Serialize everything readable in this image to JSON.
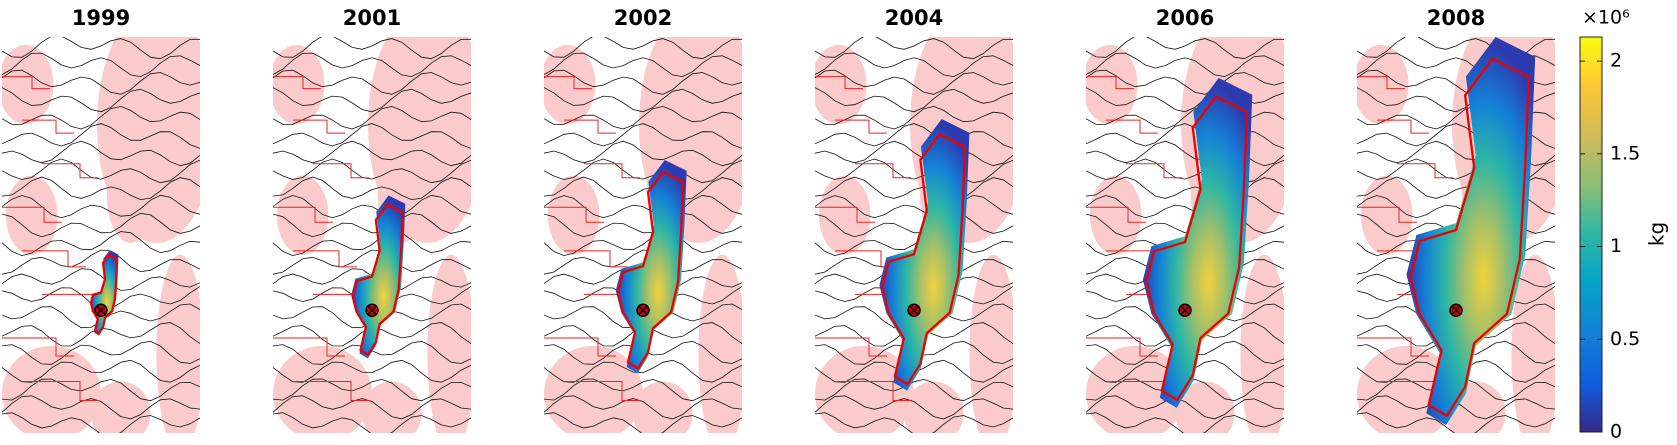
{
  "chart_data": {
    "type": "map-panels",
    "panels": [
      {
        "title": "1999"
      },
      {
        "title": "2001"
      },
      {
        "title": "2002"
      },
      {
        "title": "2004"
      },
      {
        "title": "2006"
      },
      {
        "title": "2008"
      }
    ],
    "colorbar": {
      "label": "kg",
      "multiplier": "×10⁶",
      "lim": [
        0,
        2.13
      ],
      "ticks": [
        0,
        0.5,
        1,
        1.5,
        2
      ]
    }
  }
}
